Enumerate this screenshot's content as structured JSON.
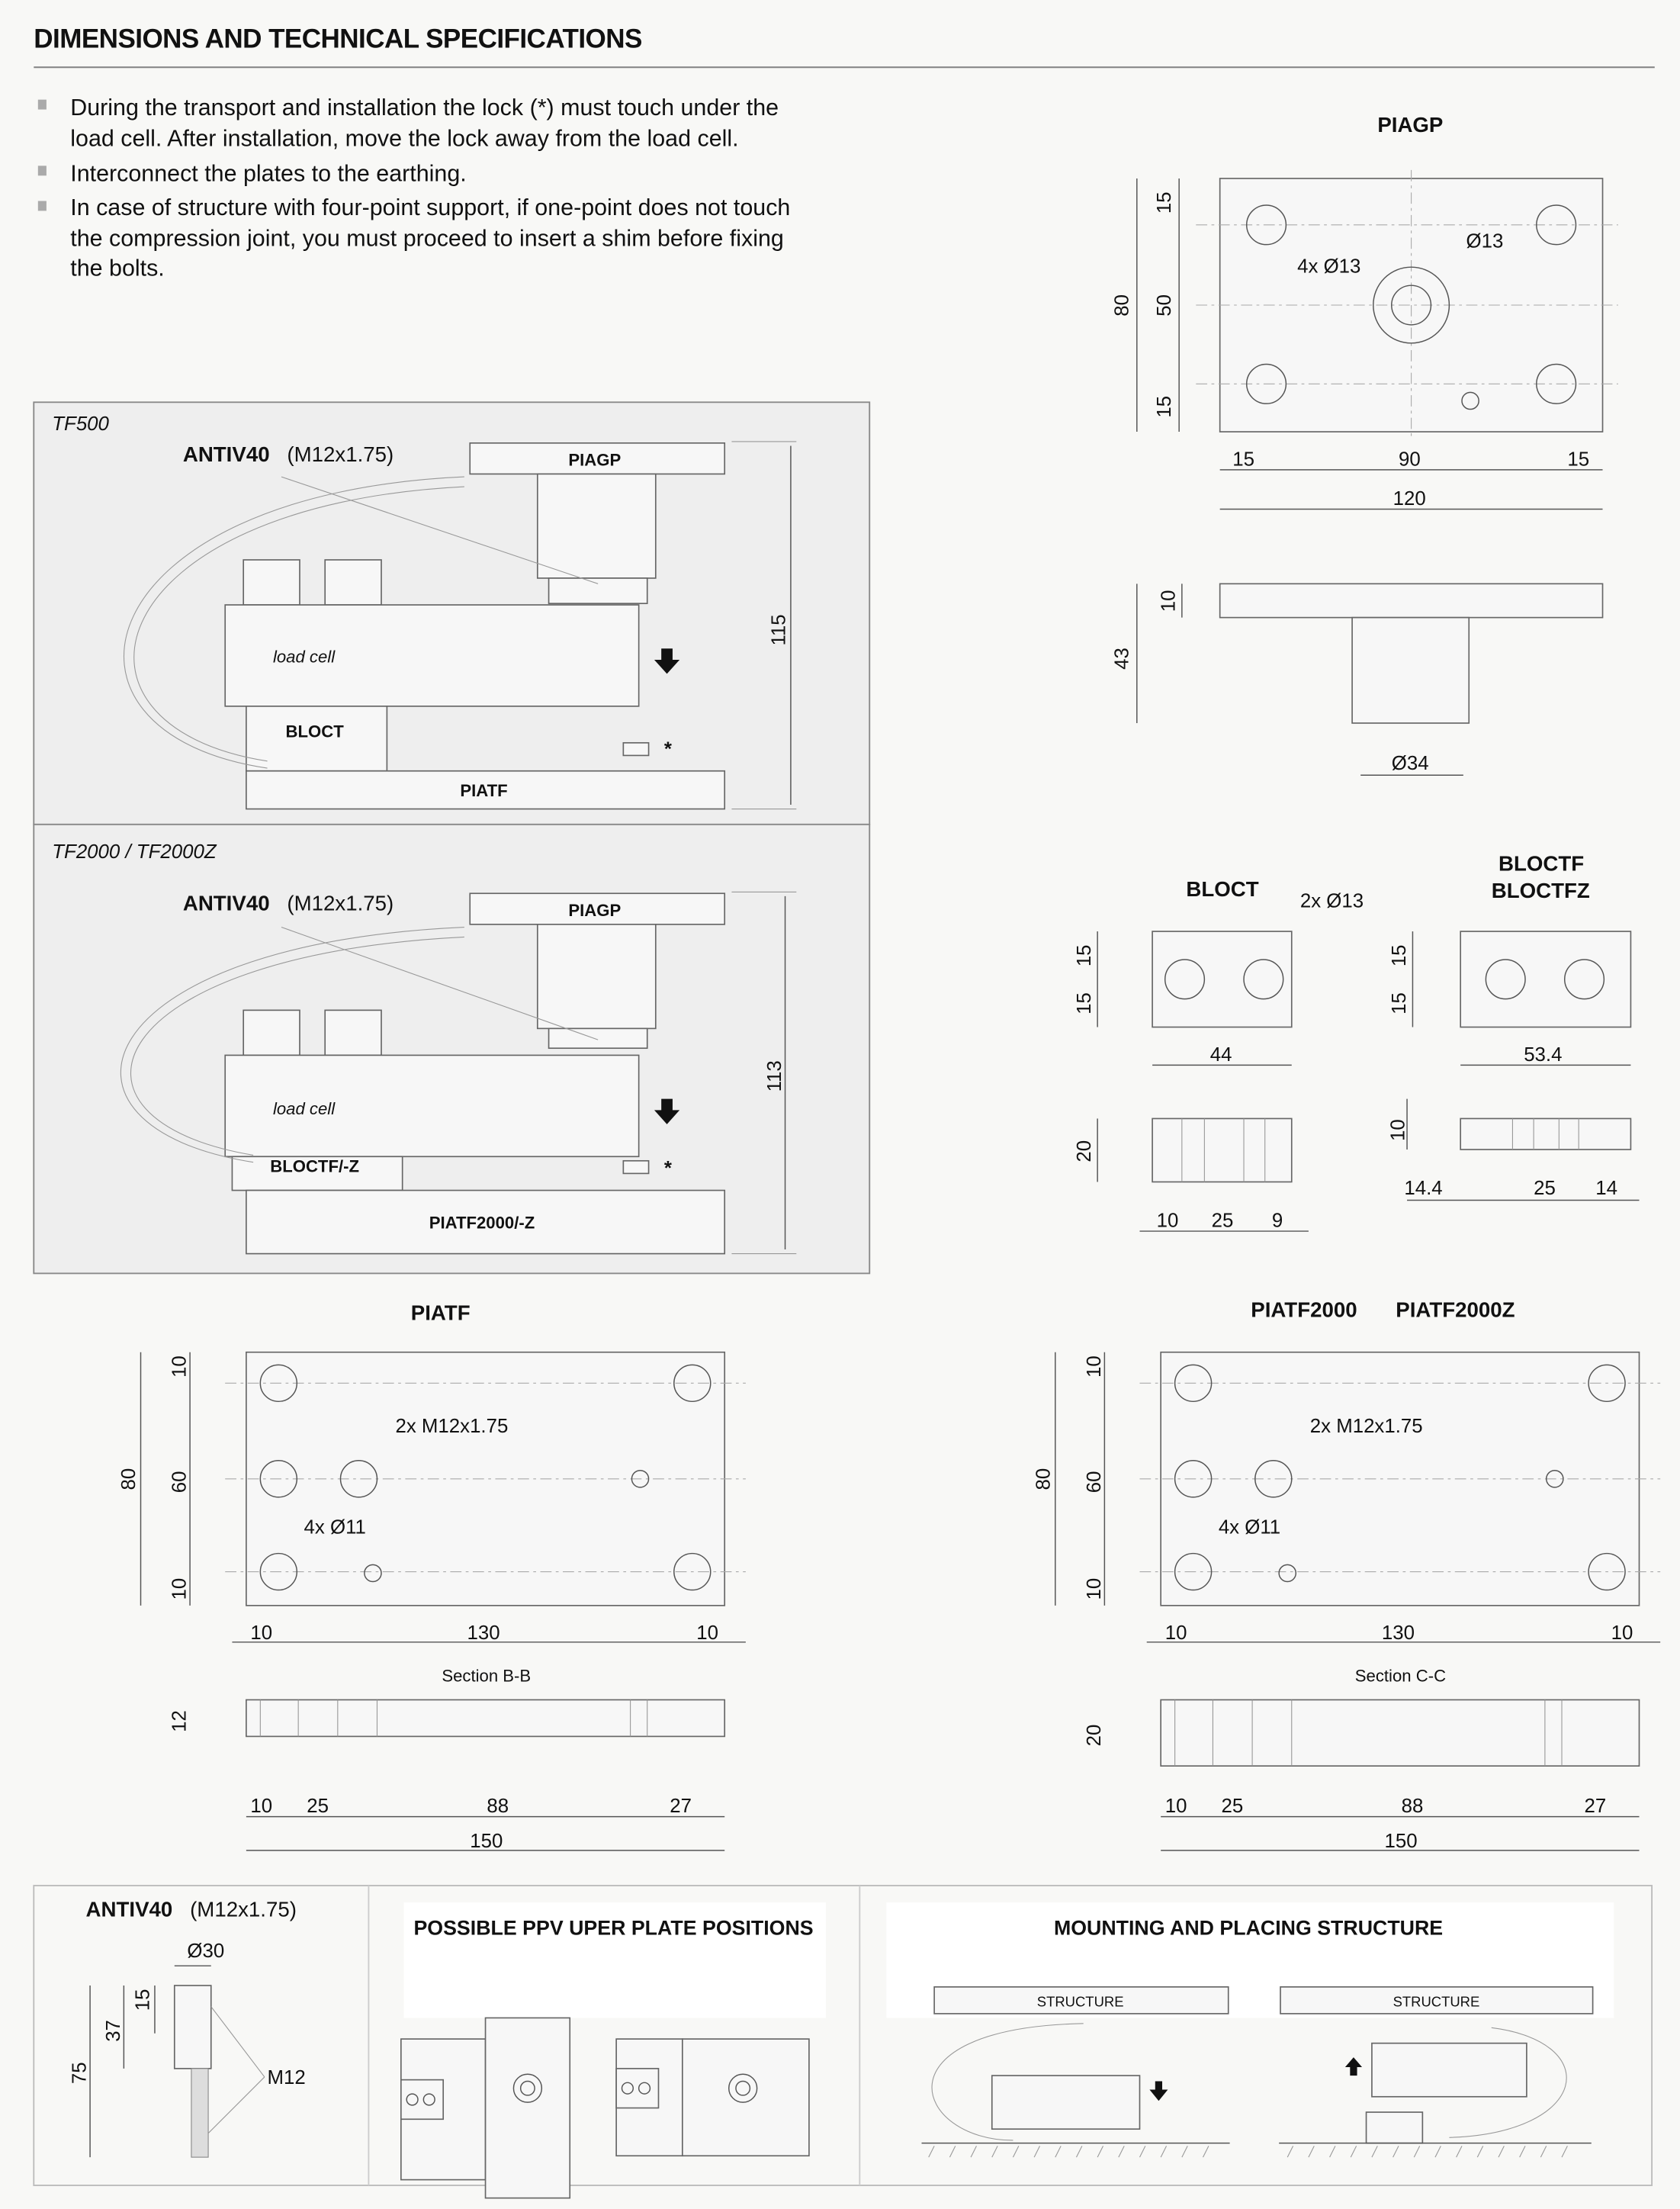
{
  "header": {
    "title": "DIMENSIONS AND TECHNICAL SPECIFICATIONS"
  },
  "notes": [
    {
      "lines": [
        "During the transport and installation the lock (*) must touch under the",
        "load cell. After installation, move the lock away from the load cell."
      ]
    },
    {
      "lines": [
        "Interconnect the plates to the earthing."
      ]
    },
    {
      "lines": [
        "In case of structure with four-point support, if one-point does not touch",
        "the compression joint, you must proceed to insert a shim before fixing",
        "the bolts."
      ]
    }
  ],
  "tf500": {
    "title": "TF500",
    "antiv": "ANTIV40",
    "antiv_spec": "(M12x1.75)",
    "top_plate": "PIAGP",
    "cell": "load cell",
    "block": "BLOCT",
    "bottom_plate": "PIATF",
    "lock_mark": "*",
    "height": "115"
  },
  "tf2000": {
    "title": "TF2000 / TF2000Z",
    "antiv": "ANTIV40",
    "antiv_spec": "(M12x1.75)",
    "top_plate": "PIAGP",
    "cell": "load cell",
    "block": "BLOCTF/-Z",
    "bottom_plate": "PIATF2000/-Z",
    "lock_mark": "*",
    "height": "113"
  },
  "piagp": {
    "title": "PIAGP",
    "d1": "15",
    "d2": "50",
    "d3": "15",
    "total_h": "80",
    "holes": "4x Ø13",
    "center_hole": "Ø13",
    "w1": "15",
    "w2": "90",
    "w3": "15",
    "total_w": "120",
    "thick": "10",
    "height": "43",
    "boss": "Ø34"
  },
  "bloct": {
    "title": "BLOCT",
    "holes": "2x Ø13",
    "h1": "15",
    "h2": "15",
    "width": "44",
    "thick": "20",
    "s1": "10",
    "s2": "25",
    "s3": "9"
  },
  "bloctf": {
    "title1": "BLOCTF",
    "title2": "BLOCTFZ",
    "h1": "15",
    "h2": "15",
    "width": "53.4",
    "thick": "10",
    "s1": "14.4",
    "s2": "25",
    "s3": "14"
  },
  "piatf": {
    "title": "PIATF",
    "h1": "10",
    "h2": "60",
    "h3": "10",
    "total_h": "80",
    "threads": "2x M12x1.75",
    "holes": "4x Ø11",
    "w1": "10",
    "w2": "130",
    "w3": "10",
    "section": "Section B-B",
    "thick": "12",
    "s1": "10",
    "s2": "25",
    "s3": "88",
    "s4": "27",
    "total_w": "150"
  },
  "piatf2000": {
    "title1": "PIATF2000",
    "title2": "PIATF2000Z",
    "h1": "10",
    "h2": "60",
    "h3": "10",
    "total_h": "80",
    "threads": "2x M12x1.75",
    "holes": "4x Ø11",
    "w1": "10",
    "w2": "130",
    "w3": "10",
    "section": "Section C-C",
    "thick": "20",
    "s1": "10",
    "s2": "25",
    "s3": "88",
    "s4": "27",
    "total_w": "150"
  },
  "antiv40": {
    "title": "ANTIV40",
    "spec": "(M12x1.75)",
    "diameter": "Ø30",
    "d15": "15",
    "d37": "37",
    "d75": "75",
    "thread": "M12"
  },
  "positions": {
    "title": "POSSIBLE PPV UPER PLATE POSITIONS"
  },
  "mounting": {
    "title": "MOUNTING AND PLACING STRUCTURE",
    "structure_left": "STRUCTURE",
    "structure_right": "STRUCTURE"
  }
}
